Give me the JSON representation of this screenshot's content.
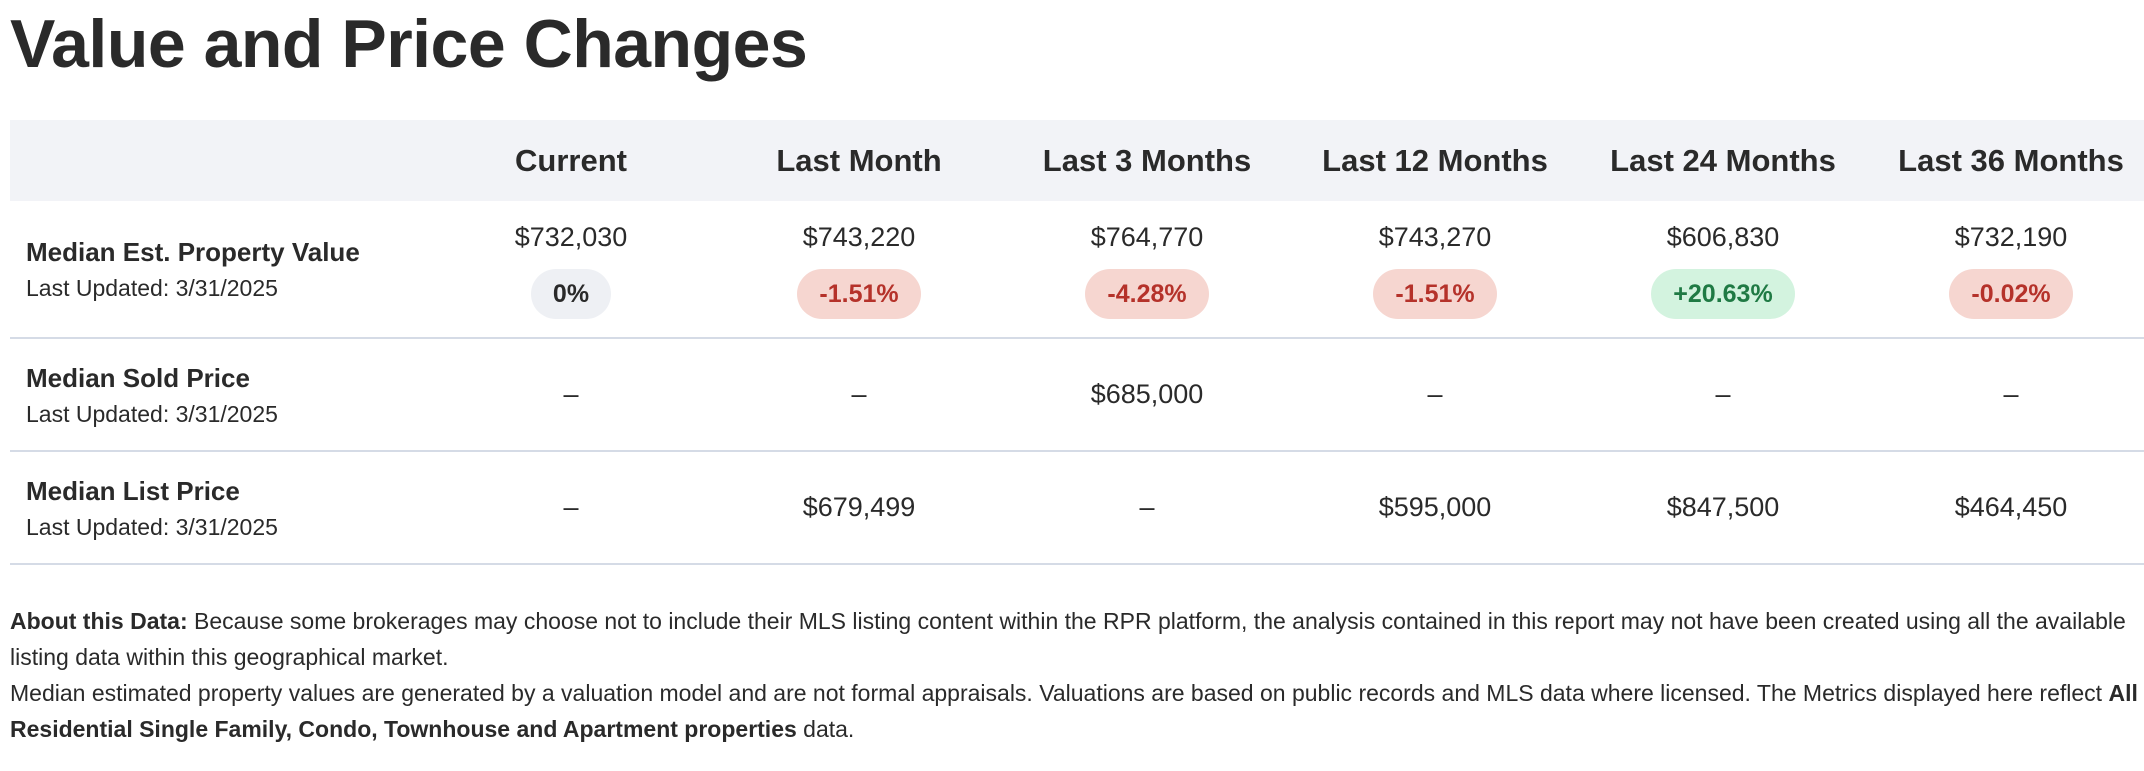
{
  "title": "Value and Price Changes",
  "columns": [
    "Current",
    "Last Month",
    "Last 3 Months",
    "Last 12 Months",
    "Last 24 Months",
    "Last 36 Months"
  ],
  "rows": [
    {
      "label": "Median Est. Property Value",
      "updated": "Last Updated: 3/31/2025",
      "values": [
        "$732,030",
        "$743,220",
        "$764,770",
        "$743,270",
        "$606,830",
        "$732,190"
      ],
      "changes": [
        {
          "text": "0%",
          "status": "neutral"
        },
        {
          "text": "-1.51%",
          "status": "negative"
        },
        {
          "text": "-4.28%",
          "status": "negative"
        },
        {
          "text": "-1.51%",
          "status": "negative"
        },
        {
          "text": "+20.63%",
          "status": "positive"
        },
        {
          "text": "-0.02%",
          "status": "negative"
        }
      ]
    },
    {
      "label": "Median Sold Price",
      "updated": "Last Updated: 3/31/2025",
      "values": [
        "–",
        "–",
        "$685,000",
        "–",
        "–",
        "–"
      ]
    },
    {
      "label": "Median List Price",
      "updated": "Last Updated: 3/31/2025",
      "values": [
        "–",
        "$679,499",
        "–",
        "$595,000",
        "$847,500",
        "$464,450"
      ]
    }
  ],
  "footnote": {
    "about_label": "About this Data:",
    "about_text": " Because some brokerages may choose not to include their MLS listing content within the RPR platform, the analysis contained in this report may not have been created using all the available listing data within this geographical market.",
    "valuation_text": "Median estimated property values are generated by a valuation model and are not formal appraisals. Valuations are based on public records and MLS data where licensed. The Metrics displayed here reflect ",
    "property_types": "All Residential Single Family, Condo, Townhouse and Apartment properties",
    "trailing_text": " data."
  },
  "colors": {
    "header_bg": "#f2f3f7",
    "negative_bg": "#f6d6d0",
    "negative_text": "#b5322a",
    "positive_bg": "#d3f3df",
    "positive_text": "#1f7a44",
    "neutral_bg": "#eef0f4",
    "divider": "#d5dbe6"
  }
}
